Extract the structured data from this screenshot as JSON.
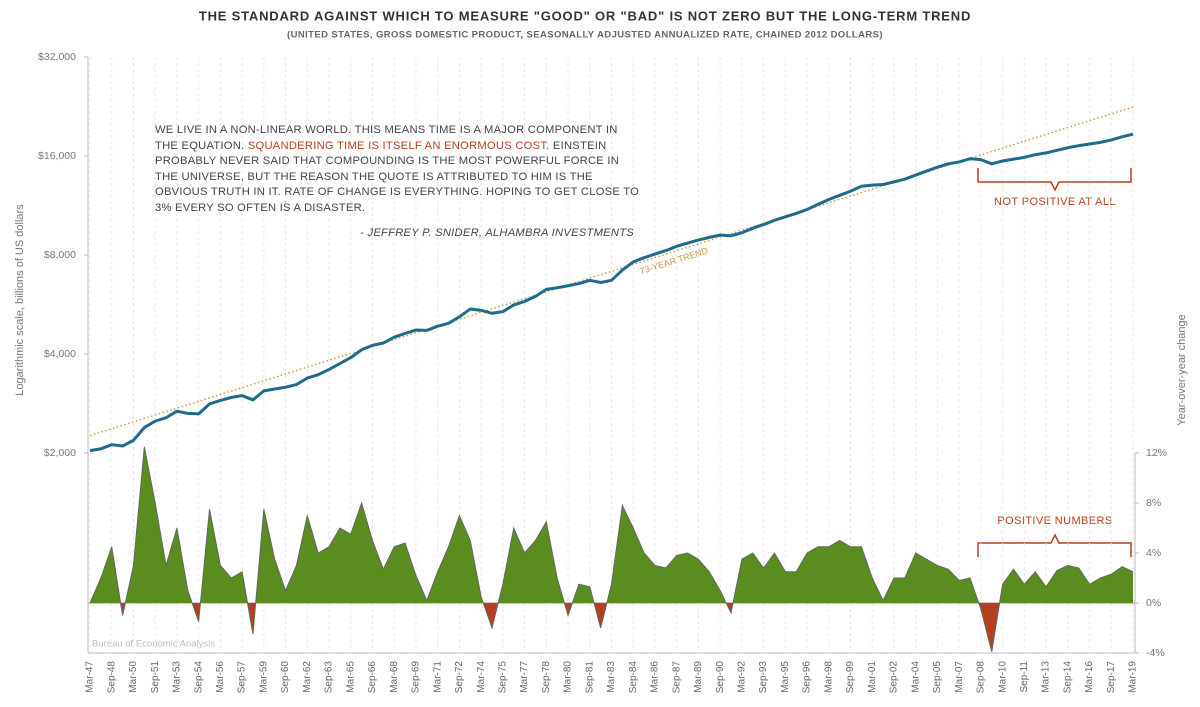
{
  "chart_data": {
    "type": "line",
    "title": "THE STANDARD AGAINST WHICH TO MEASURE \"GOOD\" OR \"BAD\" IS NOT ZERO BUT THE LONG-TERM TREND",
    "subtitle": "(UNITED STATES, GROSS DOMESTIC PRODUCT, SEASONALLY ADJUSTED ANNUALIZED RATE, CHAINED 2012 DOLLARS)",
    "ylabel": "Logarithmic scale, billions of US dollars",
    "y2label": "Year-over-year change",
    "source": "Bureau of Economic Analysis",
    "log_scale": true,
    "grid": true,
    "categories": [
      "Mar-47",
      null,
      "Sep-48",
      null,
      "Mar-50",
      null,
      "Sep-51",
      null,
      "Mar-53",
      null,
      "Sep-54",
      null,
      "Mar-56",
      null,
      "Sep-57",
      null,
      "Mar-59",
      null,
      "Sep-60",
      null,
      "Mar-62",
      null,
      "Sep-63",
      null,
      "Mar-65",
      null,
      "Sep-66",
      null,
      "Mar-68",
      null,
      "Sep-69",
      null,
      "Mar-71",
      null,
      "Sep-72",
      null,
      "Mar-74",
      null,
      "Sep-75",
      null,
      "Mar-77",
      null,
      "Sep-78",
      null,
      "Mar-80",
      null,
      "Sep-81",
      null,
      "Mar-83",
      null,
      "Sep-84",
      null,
      "Mar-86",
      null,
      "Sep-87",
      null,
      "Mar-89",
      null,
      "Sep-90",
      null,
      "Mar-92",
      null,
      "Sep-93",
      null,
      "Mar-95",
      null,
      "Sep-96",
      null,
      "Mar-98",
      null,
      "Sep-99",
      null,
      "Mar-01",
      null,
      "Sep-02",
      null,
      "Mar-04",
      null,
      "Sep-05",
      null,
      "Mar-07",
      null,
      "Sep-08",
      null,
      "Mar-10",
      null,
      "Sep-11",
      null,
      "Mar-13",
      null,
      "Sep-14",
      null,
      "Mar-16",
      null,
      "Sep-17",
      null,
      "Mar-19"
    ],
    "ylim": [
      2000,
      32000
    ],
    "yticks": [
      {
        "value": 2000,
        "label": "$2,000"
      },
      {
        "value": 4000,
        "label": "$4,000"
      },
      {
        "value": 8000,
        "label": "$8,000"
      },
      {
        "value": 16000,
        "label": "$16,000"
      },
      {
        "value": 32000,
        "label": "$32,000"
      }
    ],
    "y2lim": [
      -4,
      12
    ],
    "y2ticks": [
      {
        "value": -4,
        "label": "-4%"
      },
      {
        "value": 0,
        "label": "0%"
      },
      {
        "value": 4,
        "label": "4%"
      },
      {
        "value": 8,
        "label": "8%"
      },
      {
        "value": 12,
        "label": "12%"
      }
    ],
    "series": [
      {
        "type": "line",
        "color": "#1e6b8c",
        "values": [
          2034,
          2060,
          2120,
          2100,
          2185,
          2390,
          2500,
          2560,
          2680,
          2640,
          2630,
          2820,
          2890,
          2950,
          2990,
          2900,
          3090,
          3130,
          3170,
          3230,
          3380,
          3460,
          3590,
          3740,
          3900,
          4120,
          4250,
          4320,
          4500,
          4620,
          4730,
          4720,
          4860,
          4960,
          5190,
          5480,
          5430,
          5320,
          5380,
          5640,
          5780,
          5990,
          6290,
          6360,
          6450,
          6550,
          6700,
          6600,
          6700,
          7200,
          7620,
          7850,
          8050,
          8250,
          8500,
          8700,
          8880,
          9050,
          9200,
          9150,
          9350,
          9650,
          9900,
          10200,
          10450,
          10700,
          11000,
          11400,
          11800,
          12150,
          12500,
          12950,
          13050,
          13100,
          13350,
          13600,
          14000,
          14400,
          14800,
          15150,
          15350,
          15700,
          15600,
          15150,
          15450,
          15650,
          15850,
          16150,
          16350,
          16650,
          16950,
          17200,
          17400,
          17600,
          17900,
          18300,
          18650
        ]
      },
      {
        "type": "area",
        "axis": "y2",
        "color": "#5b8c1f",
        "negative_color": "#b5401f",
        "values": [
          0,
          2.0,
          4.5,
          -1.0,
          3.0,
          12.5,
          8.0,
          3.0,
          6.0,
          1.0,
          -1.5,
          7.5,
          3.0,
          2.0,
          2.5,
          -2.5,
          7.5,
          3.5,
          1.0,
          3.0,
          7.0,
          4.0,
          4.5,
          6.0,
          5.5,
          8.0,
          5.0,
          2.7,
          4.5,
          4.8,
          2.2,
          0.2,
          2.5,
          4.5,
          7.0,
          5.0,
          0.5,
          -2.0,
          1.5,
          6.0,
          4.0,
          5.0,
          6.5,
          2.0,
          -1.0,
          1.5,
          1.3,
          -2.0,
          1.5,
          7.8,
          6.0,
          4.0,
          3.0,
          2.8,
          3.8,
          4.0,
          3.5,
          2.5,
          1.0,
          -0.8,
          3.5,
          4.0,
          2.8,
          4.0,
          2.5,
          2.5,
          4.0,
          4.5,
          4.5,
          5.0,
          4.5,
          4.5,
          2.0,
          0.2,
          2.0,
          2.0,
          4.0,
          3.5,
          3.0,
          2.7,
          1.8,
          2.0,
          -0.5,
          -3.9,
          1.5,
          2.7,
          1.5,
          2.5,
          1.3,
          2.6,
          3.0,
          2.8,
          1.5,
          2.0,
          2.3,
          2.9,
          2.5
        ]
      }
    ],
    "trend": {
      "label": "73-YEAR TREND",
      "color": "#c8963c",
      "values": [
        2260,
        22550
      ]
    },
    "quote": {
      "parts": [
        "WE LIVE IN A NON-LINEAR WORLD. THIS MEANS TIME IS A MAJOR COMPONENT IN THE EQUATION.  ",
        "SQUANDERING TIME IS ITSELF AN ENORMOUS COST.",
        "  EINSTEIN PROBABLY NEVER SAID THAT COMPOUNDING IS THE MOST POWERFUL FORCE IN THE UNIVERSE, BUT THE REASON THE QUOTE IS ATTRIBUTED TO HIM IS THE OBVIOUS TRUTH IN IT.  RATE OF CHANGE IS EVERYTHING.  HOPING TO GET CLOSE TO 3% EVERY SO OFTEN IS A DISASTER."
      ],
      "highlight_color": "#b5401f",
      "attribution": "- JEFFREY P. SNIDER, ALHAMBRA INVESTMENTS"
    },
    "annotations": [
      {
        "text": "NOT POSITIVE AT ALL",
        "color": "#b5401f"
      },
      {
        "text": "POSITIVE NUMBERS",
        "color": "#b5401f"
      }
    ]
  }
}
